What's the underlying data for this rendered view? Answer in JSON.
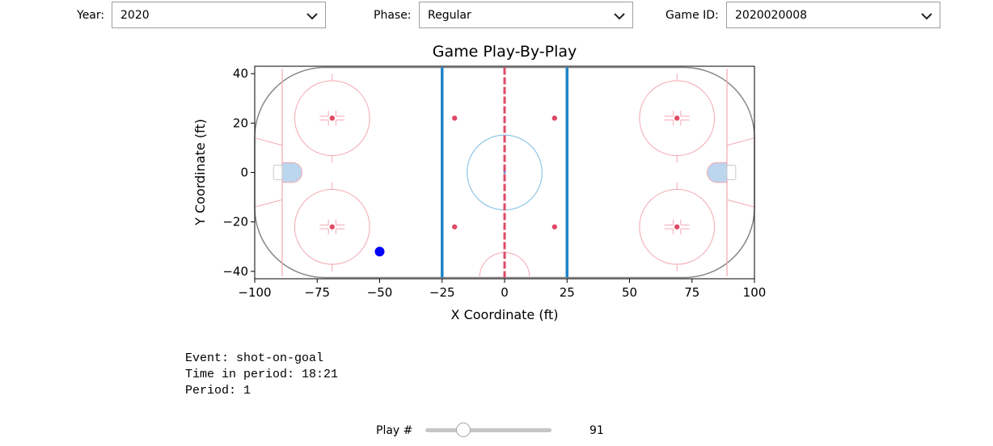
{
  "controls": {
    "year": {
      "label": "Year:",
      "value": "2020"
    },
    "phase": {
      "label": "Phase:",
      "value": "Regular"
    },
    "game_id": {
      "label": "Game ID:",
      "value": "2020020008"
    }
  },
  "chart_data": {
    "type": "scatter",
    "title": "Game Play-By-Play",
    "xlabel": "X Coordinate (ft)",
    "ylabel": "Y Coordinate (ft)",
    "xlim": [
      -100,
      100
    ],
    "ylim": [
      -43,
      43
    ],
    "xticks": [
      "−100",
      "−75",
      "−50",
      "−25",
      "0",
      "25",
      "50",
      "75",
      "100"
    ],
    "yticks": [
      "40",
      "20",
      "0",
      "−20",
      "−40"
    ],
    "background": "NHL rink diagram",
    "points": [
      {
        "x": -50,
        "y": -32,
        "color": "#0000ff"
      }
    ]
  },
  "event": {
    "type_line": "Event: shot-on-goal",
    "time_line": "Time in period: 18:21",
    "period_line": "Period: 1"
  },
  "slider": {
    "label": "Play #",
    "value": 91,
    "min": 0,
    "max": 300
  },
  "colors": {
    "blue_line": "#1f85c9",
    "red_line": "#e04a66",
    "faceoff": "#f2a8b0",
    "crease": "#bcd6ee",
    "point": "#0000ff"
  }
}
